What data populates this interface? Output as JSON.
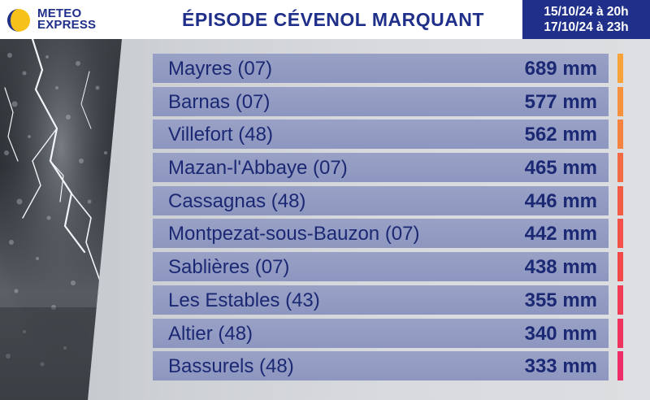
{
  "brand": {
    "line1": "METEO",
    "line2": "EXPRESS"
  },
  "title": "ÉPISODE CÉVENOL MARQUANT",
  "period": {
    "start": "15/10/24 à 20h",
    "end": "17/10/24 à 23h"
  },
  "chart_data": {
    "type": "table",
    "title": "ÉPISODE CÉVENOL MARQUANT",
    "columns": [
      "Lieu",
      "Cumul"
    ],
    "rows": [
      {
        "name": "Mayres (07)",
        "value": 689,
        "label": "689 mm",
        "color": "#f7a33a"
      },
      {
        "name": "Barnas (07)",
        "value": 577,
        "label": "577 mm",
        "color": "#f6913e"
      },
      {
        "name": "Villefort (48)",
        "value": 562,
        "label": "562 mm",
        "color": "#f5833f"
      },
      {
        "name": "Mazan-l'Abbaye (07)",
        "value": 465,
        "label": "465 mm",
        "color": "#f46a42"
      },
      {
        "name": "Cassagnas (48)",
        "value": 446,
        "label": "446 mm",
        "color": "#f35c44"
      },
      {
        "name": "Montpezat-sous-Bauzon (07)",
        "value": 442,
        "label": "442 mm",
        "color": "#f25247"
      },
      {
        "name": "Sablières (07)",
        "value": 438,
        "label": "438 mm",
        "color": "#f24a49"
      },
      {
        "name": "Les Estables (43)",
        "value": 355,
        "label": "355 mm",
        "color": "#f03c55"
      },
      {
        "name": "Altier (48)",
        "value": 340,
        "label": "340 mm",
        "color": "#ef335f"
      },
      {
        "name": "Bassurels (48)",
        "value": 333,
        "label": "333 mm",
        "color": "#ee2d68"
      }
    ]
  }
}
